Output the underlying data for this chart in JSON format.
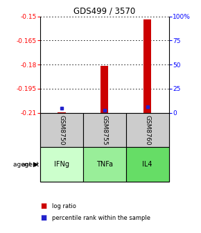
{
  "title": "GDS499 / 3570",
  "samples": [
    "GSM8750",
    "GSM8755",
    "GSM8760"
  ],
  "agents": [
    "IFNg",
    "TNFa",
    "IL4"
  ],
  "agent_colors": [
    "#ccffcc",
    "#99ee99",
    "#66dd66"
  ],
  "ylim_left": [
    -0.21,
    -0.15
  ],
  "ylim_right": [
    0,
    100
  ],
  "yticks_left": [
    -0.21,
    -0.195,
    -0.18,
    -0.165,
    -0.15
  ],
  "yticks_right": [
    0,
    25,
    50,
    75,
    100
  ],
  "ytick_labels_left": [
    "-0.21",
    "-0.195",
    "-0.18",
    "-0.165",
    "-0.15"
  ],
  "ytick_labels_right": [
    "0",
    "25",
    "50",
    "75",
    "100%"
  ],
  "log_ratio_base": -0.21,
  "log_ratios": [
    -0.2095,
    -0.181,
    -0.152
  ],
  "percentile_ranks": [
    4.5,
    3.0,
    6.0
  ],
  "bar_color": "#cc0000",
  "dot_color": "#2222cc",
  "sample_bg_color": "#cccccc",
  "bar_width": 0.18
}
